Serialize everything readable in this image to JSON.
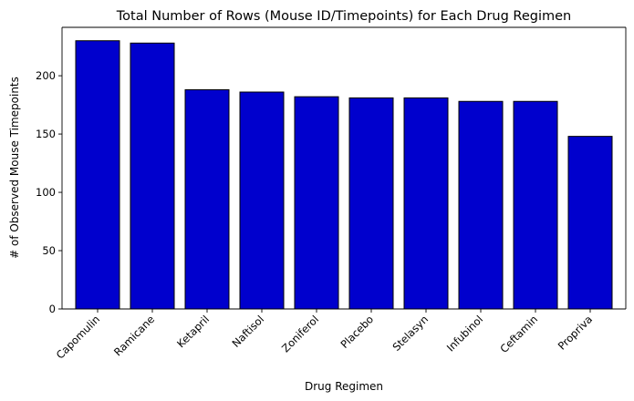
{
  "chart_data": {
    "type": "bar",
    "title": "Total Number of Rows (Mouse ID/Timepoints) for Each Drug Regimen",
    "xlabel": "Drug Regimen",
    "ylabel": "# of Observed Mouse Timepoints",
    "categories": [
      "Capomulin",
      "Ramicane",
      "Ketapril",
      "Naftisol",
      "Zoniferol",
      "Placebo",
      "Stelasyn",
      "Infubinol",
      "Ceftamin",
      "Propriva"
    ],
    "values": [
      230,
      228,
      188,
      186,
      182,
      181,
      181,
      178,
      178,
      148
    ],
    "ylim": [
      0,
      241.5
    ],
    "yticks": [
      0,
      50,
      100,
      150,
      200
    ],
    "bar_color": "#0000cd",
    "edge_color": "#000000",
    "grid": false,
    "xtick_rotation": 45
  }
}
